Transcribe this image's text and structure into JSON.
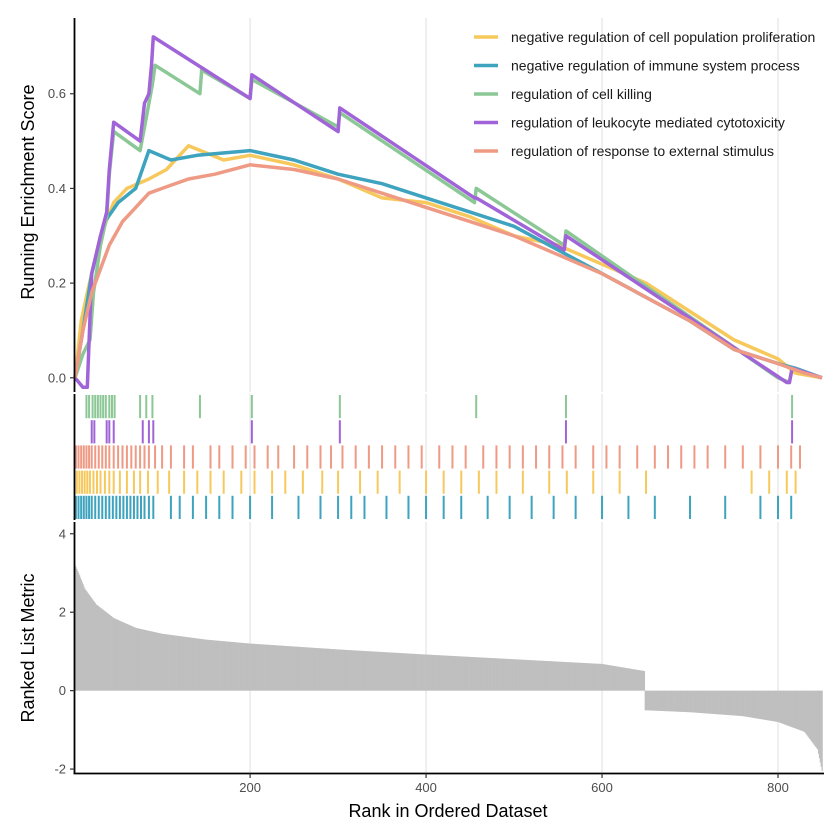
{
  "chart_data": {
    "type": "line",
    "title": "",
    "xlabel": "Rank in Ordered Dataset",
    "x_ticks": [
      200,
      400,
      600,
      800
    ],
    "xlim": [
      1,
      850
    ],
    "panels": {
      "es": {
        "ylabel": "Running Enrichment Score",
        "ylim": [
          -0.03,
          0.76
        ],
        "y_ticks": [
          0.0,
          0.2,
          0.4,
          0.6
        ],
        "y_tick_labels": [
          "0.0",
          "0.2",
          "0.4",
          "0.6"
        ]
      },
      "metric": {
        "ylabel": "Ranked List Metric",
        "ylim": [
          -2.1,
          4.3
        ],
        "y_ticks": [
          -2,
          0,
          2,
          4
        ],
        "y_tick_labels": [
          "-2",
          "0",
          "2",
          "4"
        ],
        "bar_color": "#bfbfbf",
        "curve": [
          [
            1,
            3.2
          ],
          [
            5,
            3.0
          ],
          [
            12,
            2.6
          ],
          [
            25,
            2.2
          ],
          [
            45,
            1.85
          ],
          [
            70,
            1.6
          ],
          [
            100,
            1.45
          ],
          [
            150,
            1.3
          ],
          [
            200,
            1.2
          ],
          [
            300,
            1.05
          ],
          [
            400,
            0.92
          ],
          [
            500,
            0.8
          ],
          [
            600,
            0.68
          ],
          [
            648,
            0.5
          ],
          [
            649,
            -0.5
          ],
          [
            700,
            -0.55
          ],
          [
            760,
            -0.65
          ],
          [
            800,
            -0.8
          ],
          [
            830,
            -1.05
          ],
          [
            845,
            -1.5
          ],
          [
            850,
            -2.05
          ]
        ]
      }
    },
    "legend_position": "top-right",
    "series": [
      {
        "name": "negative regulation of cell population proliferation",
        "color": "#F7C95C",
        "points": [
          [
            1,
            0.0
          ],
          [
            8,
            0.12
          ],
          [
            15,
            0.18
          ],
          [
            30,
            0.3
          ],
          [
            45,
            0.37
          ],
          [
            60,
            0.4
          ],
          [
            85,
            0.42
          ],
          [
            105,
            0.44
          ],
          [
            130,
            0.49
          ],
          [
            170,
            0.46
          ],
          [
            200,
            0.47
          ],
          [
            250,
            0.45
          ],
          [
            300,
            0.42
          ],
          [
            350,
            0.38
          ],
          [
            400,
            0.37
          ],
          [
            450,
            0.34
          ],
          [
            500,
            0.3
          ],
          [
            550,
            0.28
          ],
          [
            600,
            0.24
          ],
          [
            650,
            0.2
          ],
          [
            700,
            0.14
          ],
          [
            750,
            0.08
          ],
          [
            800,
            0.04
          ],
          [
            820,
            0.01
          ],
          [
            850,
            0.0
          ]
        ],
        "hits": [
          3,
          6,
          9,
          12,
          15,
          18,
          22,
          26,
          30,
          35,
          40,
          45,
          52,
          60,
          68,
          75,
          84,
          95,
          108,
          125,
          140,
          155,
          170,
          190,
          205,
          225,
          240,
          260,
          282,
          300,
          325,
          345,
          370,
          400,
          420,
          440,
          460,
          480,
          510,
          540,
          560,
          590,
          620,
          650,
          770,
          790,
          810,
          820
        ]
      },
      {
        "name": "negative regulation of immune system process",
        "color": "#3EA3BE",
        "points": [
          [
            1,
            0.0
          ],
          [
            10,
            0.1
          ],
          [
            20,
            0.22
          ],
          [
            35,
            0.33
          ],
          [
            50,
            0.37
          ],
          [
            70,
            0.4
          ],
          [
            85,
            0.48
          ],
          [
            110,
            0.46
          ],
          [
            140,
            0.47
          ],
          [
            200,
            0.48
          ],
          [
            250,
            0.46
          ],
          [
            300,
            0.43
          ],
          [
            350,
            0.41
          ],
          [
            400,
            0.38
          ],
          [
            450,
            0.35
          ],
          [
            500,
            0.32
          ],
          [
            550,
            0.27
          ],
          [
            600,
            0.22
          ],
          [
            650,
            0.17
          ],
          [
            700,
            0.12
          ],
          [
            750,
            0.06
          ],
          [
            800,
            0.03
          ],
          [
            820,
            0.02
          ],
          [
            850,
            0.0
          ]
        ],
        "hits": [
          2,
          5,
          8,
          11,
          14,
          17,
          20,
          24,
          28,
          32,
          36,
          40,
          44,
          48,
          52,
          56,
          60,
          64,
          68,
          72,
          76,
          80,
          85,
          90,
          110,
          120,
          135,
          150,
          165,
          180,
          200,
          225,
          255,
          280,
          300,
          315,
          330,
          355,
          380,
          400,
          420,
          440,
          470,
          495,
          520,
          545,
          570,
          600,
          630,
          660,
          700,
          740,
          780,
          800,
          815
        ]
      },
      {
        "name": "regulation of cell killing",
        "color": "#8CC796",
        "points": [
          [
            1,
            0.0
          ],
          [
            10,
            0.05
          ],
          [
            18,
            0.08
          ],
          [
            22,
            0.18
          ],
          [
            30,
            0.28
          ],
          [
            37,
            0.34
          ],
          [
            40,
            0.43
          ],
          [
            45,
            0.52
          ],
          [
            75,
            0.48
          ],
          [
            82,
            0.55
          ],
          [
            89,
            0.62
          ],
          [
            92,
            0.66
          ],
          [
            143,
            0.6
          ],
          [
            145,
            0.65
          ],
          [
            200,
            0.59
          ],
          [
            202,
            0.63
          ],
          [
            300,
            0.53
          ],
          [
            302,
            0.56
          ],
          [
            455,
            0.37
          ],
          [
            457,
            0.4
          ],
          [
            557,
            0.28
          ],
          [
            559,
            0.31
          ],
          [
            800,
            0.0
          ],
          [
            813,
            -0.01
          ],
          [
            816,
            0.02
          ],
          [
            850,
            0.0
          ]
        ],
        "hits": [
          14,
          17,
          21,
          24,
          27,
          30,
          33,
          36,
          40,
          43,
          46,
          75,
          82,
          89,
          143,
          202,
          302,
          457,
          559,
          816
        ]
      },
      {
        "name": "regulation of leukocyte mediated cytotoxicity",
        "color": "#A064D8",
        "points": [
          [
            1,
            0.0
          ],
          [
            10,
            -0.02
          ],
          [
            15,
            -0.02
          ],
          [
            20,
            0.22
          ],
          [
            30,
            0.3
          ],
          [
            37,
            0.35
          ],
          [
            40,
            0.44
          ],
          [
            45,
            0.54
          ],
          [
            75,
            0.5
          ],
          [
            80,
            0.58
          ],
          [
            85,
            0.6
          ],
          [
            88,
            0.66
          ],
          [
            90,
            0.72
          ],
          [
            200,
            0.59
          ],
          [
            202,
            0.64
          ],
          [
            300,
            0.52
          ],
          [
            302,
            0.57
          ],
          [
            455,
            0.38
          ],
          [
            457,
            0.38
          ],
          [
            557,
            0.27
          ],
          [
            559,
            0.3
          ],
          [
            810,
            -0.01
          ],
          [
            813,
            -0.01
          ],
          [
            816,
            0.02
          ],
          [
            850,
            0.0
          ]
        ],
        "hits": [
          20,
          23,
          37,
          40,
          45,
          78,
          85,
          90,
          202,
          302,
          559,
          816
        ]
      },
      {
        "name": "regulation of response to external stimulus",
        "color": "#EE9A84",
        "points": [
          [
            1,
            0.0
          ],
          [
            10,
            0.1
          ],
          [
            20,
            0.18
          ],
          [
            30,
            0.23
          ],
          [
            40,
            0.28
          ],
          [
            55,
            0.33
          ],
          [
            70,
            0.36
          ],
          [
            85,
            0.39
          ],
          [
            100,
            0.4
          ],
          [
            130,
            0.42
          ],
          [
            160,
            0.43
          ],
          [
            200,
            0.45
          ],
          [
            250,
            0.44
          ],
          [
            300,
            0.42
          ],
          [
            350,
            0.39
          ],
          [
            400,
            0.36
          ],
          [
            450,
            0.33
          ],
          [
            500,
            0.3
          ],
          [
            550,
            0.26
          ],
          [
            600,
            0.22
          ],
          [
            650,
            0.17
          ],
          [
            700,
            0.12
          ],
          [
            750,
            0.06
          ],
          [
            800,
            0.03
          ],
          [
            830,
            0.01
          ],
          [
            850,
            0.0
          ]
        ],
        "hits": [
          2,
          5,
          8,
          11,
          14,
          17,
          20,
          24,
          28,
          32,
          36,
          40,
          45,
          50,
          55,
          60,
          65,
          70,
          75,
          80,
          85,
          92,
          100,
          110,
          125,
          135,
          155,
          165,
          180,
          195,
          205,
          220,
          232,
          250,
          265,
          280,
          292,
          305,
          320,
          335,
          350,
          365,
          380,
          395,
          415,
          430,
          445,
          465,
          480,
          495,
          510,
          525,
          540,
          555,
          570,
          590,
          605,
          620,
          640,
          660,
          675,
          690,
          705,
          720,
          740,
          760,
          780,
          800,
          815,
          825
        ]
      }
    ]
  }
}
